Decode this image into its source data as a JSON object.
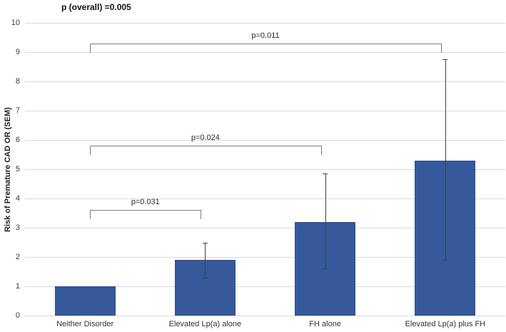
{
  "figure": {
    "overall_p_label": "p (overall) =0.005"
  },
  "chart_data": {
    "type": "bar",
    "title": "p (overall) =0.005",
    "xlabel": "",
    "ylabel": "Risk of Premature CAD OR (SEM)",
    "categories": [
      "Neither Disorder",
      "Elevated Lp(a) alone",
      "FH alone",
      "Elevated Lp(a) plus FH"
    ],
    "values": [
      1.0,
      1.9,
      3.2,
      5.3
    ],
    "error_bars": [
      {
        "low": null,
        "high": null
      },
      {
        "low": 1.3,
        "high": 2.5
      },
      {
        "low": 1.6,
        "high": 4.85
      },
      {
        "low": 1.9,
        "high": 8.75
      }
    ],
    "ylim": [
      0,
      10
    ],
    "ytick_step": 1,
    "grid": true,
    "legend": "none",
    "colors": {
      "bar": "#35599B",
      "bar_edge": "#2E5090",
      "gridline": "#D9D9D9",
      "bracket": "#7F7F7F",
      "error_bar": "#404040"
    },
    "significance_brackets": [
      {
        "label": "p=0.031",
        "from_category": 0,
        "to_category": 1,
        "y": 3.6
      },
      {
        "label": "p=0.024",
        "from_category": 0,
        "to_category": 2,
        "y": 5.8
      },
      {
        "label": "p=0.011",
        "from_category": 0,
        "to_category": 3,
        "y": 9.3
      }
    ]
  }
}
